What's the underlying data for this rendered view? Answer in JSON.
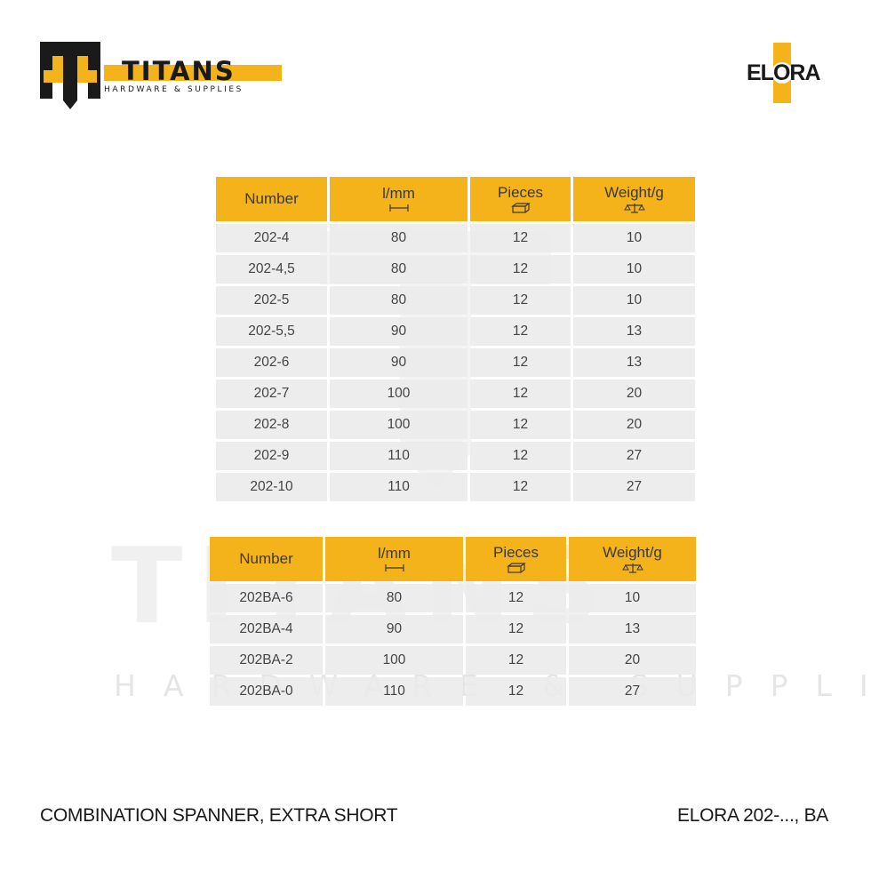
{
  "brand": {
    "name": "TITANS",
    "subtitle": "HARDWARE & SUPPLIES",
    "logo_icon": "titans-t-h-emblem-icon",
    "accent_color": "#f4b21b"
  },
  "maker": {
    "name": "ELORA",
    "accent_color": "#f4b21b"
  },
  "watermark": {
    "big": "TITANS",
    "small": "HARDWARE & SUPPLIES"
  },
  "table1": {
    "headers": [
      "Number",
      "l/mm",
      "Pieces",
      "Weight/g"
    ],
    "header_icons": [
      "",
      "length-icon",
      "box-icon",
      "scale-icon"
    ],
    "rows": [
      [
        "202-4",
        "80",
        "12",
        "10"
      ],
      [
        "202-4,5",
        "80",
        "12",
        "10"
      ],
      [
        "202-5",
        "80",
        "12",
        "10"
      ],
      [
        "202-5,5",
        "90",
        "12",
        "13"
      ],
      [
        "202-6",
        "90",
        "12",
        "13"
      ],
      [
        "202-7",
        "100",
        "12",
        "20"
      ],
      [
        "202-8",
        "100",
        "12",
        "20"
      ],
      [
        "202-9",
        "110",
        "12",
        "27"
      ],
      [
        "202-10",
        "110",
        "12",
        "27"
      ]
    ]
  },
  "table2": {
    "headers": [
      "Number",
      "l/mm",
      "Pieces",
      "Weight/g"
    ],
    "header_icons": [
      "",
      "length-icon",
      "box-icon",
      "scale-icon"
    ],
    "rows": [
      [
        "202BA-6",
        "80",
        "12",
        "10"
      ],
      [
        "202BA-4",
        "90",
        "12",
        "13"
      ],
      [
        "202BA-2",
        "100",
        "12",
        "20"
      ],
      [
        "202BA-0",
        "110",
        "12",
        "27"
      ]
    ]
  },
  "footer": {
    "product": "COMBINATION SPANNER, EXTRA SHORT",
    "code": "ELORA 202-..., BA"
  }
}
